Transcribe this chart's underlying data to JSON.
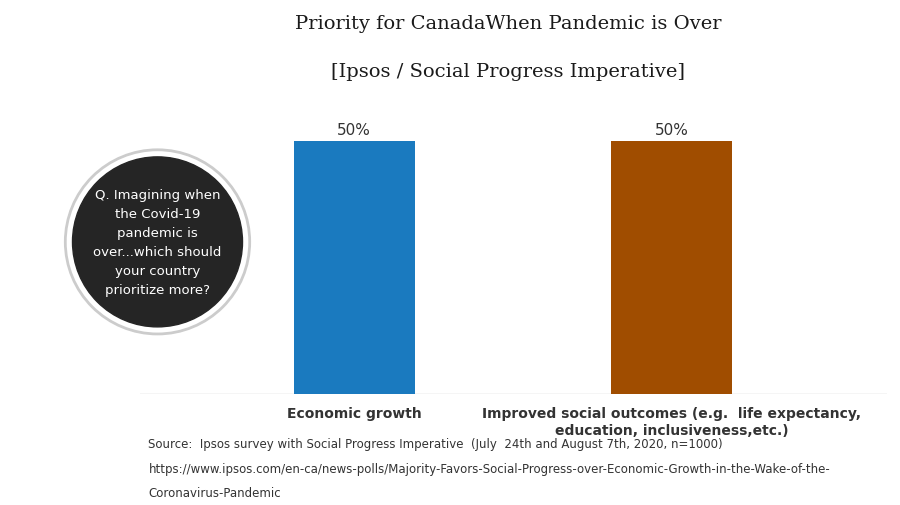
{
  "title_line1": "Priority for CanadaWhen Pandemic is Over",
  "title_line2": "[Ipsos / Social Progress Imperative]",
  "categories": [
    "Economic growth",
    "Improved social outcomes (e.g.  life expectancy,\neducation, inclusiveness,etc.)"
  ],
  "values": [
    50,
    50
  ],
  "bar_colors": [
    "#1a7abf",
    "#a04d00"
  ],
  "bar_labels": [
    "50%",
    "50%"
  ],
  "left_panel_color": "#888888",
  "circle_color": "#252525",
  "circle_ring_color": "#cccccc",
  "circle_text": "Q. Imagining when\nthe Covid-19\npandemic is\nover...which should\nyour country\nprioritize more?",
  "circle_text_color": "#ffffff",
  "source_line1": "Source:  Ipsos survey with Social Progress Imperative  (July  24th and August 7th, 2020, n=1000)",
  "source_line2": "https://www.ipsos.com/en-ca/news-polls/Majority-Favors-Social-Progress-over-Economic-Growth-in-the-Wake-of-the-",
  "source_line3": "Coronavirus-Pandemic",
  "background_color": "#ffffff",
  "label_color": "#333333",
  "category_color": "#333333",
  "ylim": [
    0,
    60
  ],
  "bar_positions": [
    0.38,
    0.72
  ],
  "bar_width": 0.13,
  "label_fontsize": 11,
  "title_fontsize": 14,
  "source_fontsize": 8.5,
  "category_fontsize": 10
}
